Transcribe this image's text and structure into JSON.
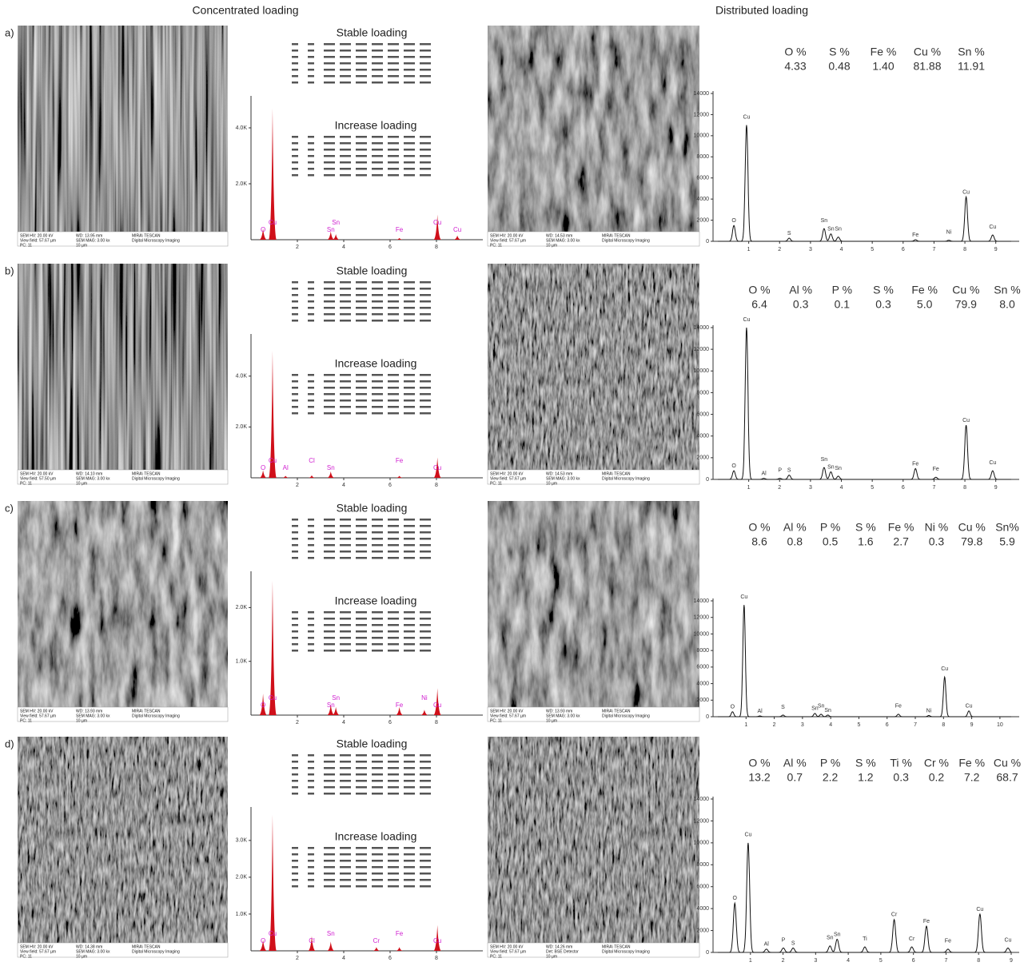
{
  "headers": {
    "concentrated": "Concentrated loading",
    "distributed": "Distributed loading"
  },
  "rows": [
    {
      "label": "a)",
      "stable_title": "Stable loading",
      "increase_title": "Increase loading",
      "sem_left": [
        "SEM HV: 20.00 kV",
        "View field: 57.67 µm",
        "PC: 11",
        "WD: 13.95 mm",
        "SEM MAG: 3.00 kx",
        "10 µm",
        "MIRA\\ TESCAN",
        "Digital Microscopy Imaging"
      ],
      "sem_right": [
        "SEM HV: 20.00 kV",
        "View field: 57.67 µm",
        "PC: 11",
        "WD: 14.53 mm",
        "SEM MAG: 3.00 kx",
        "10 µm",
        "MIRA\\ TESCAN",
        "Digital Microscopy Imaging"
      ],
      "eds": {
        "xlim": [
          0,
          10
        ],
        "ylim": [
          0,
          5000
        ],
        "xticks": [
          2,
          4,
          6,
          8
        ],
        "yticks": [
          {
            "value": 2000,
            "label": "2.0K"
          },
          {
            "value": 4000,
            "label": "4.0K"
          }
        ],
        "peaks": [
          {
            "label": "O",
            "x": 0.52,
            "y": 400
          },
          {
            "label": "Cu",
            "x": 0.93,
            "y": 4700
          },
          {
            "label": "Sn",
            "x": 3.44,
            "y": 300
          },
          {
            "label": "Sn",
            "x": 3.66,
            "y": 200
          },
          {
            "label": "Fe",
            "x": 6.4,
            "y": 60
          },
          {
            "label": "Cu",
            "x": 8.04,
            "y": 900
          },
          {
            "label": "Cu",
            "x": 8.9,
            "y": 150
          }
        ]
      },
      "composition": {
        "elements": [
          "O %",
          "S %",
          "Fe %",
          "Cu %",
          "Sn %"
        ],
        "values": [
          "4.33",
          "0.48",
          "1.40",
          "81.88",
          "11.91"
        ]
      },
      "spectrum": {
        "xlim": [
          0,
          9.5
        ],
        "ylim": [
          0,
          14000
        ],
        "xticks": [
          1,
          2,
          3,
          4,
          5,
          6,
          7,
          8,
          9
        ],
        "yticks": [
          0,
          2000,
          4000,
          6000,
          8000,
          10000,
          12000,
          14000
        ],
        "peaks": [
          {
            "label": "O",
            "x": 0.52,
            "y": 1500
          },
          {
            "label": "Cu",
            "x": 0.93,
            "y": 11000
          },
          {
            "label": "S",
            "x": 2.31,
            "y": 300
          },
          {
            "label": "Sn",
            "x": 3.44,
            "y": 1200
          },
          {
            "label": "Sn",
            "x": 3.66,
            "y": 700
          },
          {
            "label": "Sn",
            "x": 3.9,
            "y": 400
          },
          {
            "label": "Fe",
            "x": 6.4,
            "y": 150
          },
          {
            "label": "Ni",
            "x": 7.48,
            "y": 100
          },
          {
            "label": "Cu",
            "x": 8.04,
            "y": 4200
          },
          {
            "label": "Cu",
            "x": 8.9,
            "y": 600
          }
        ]
      }
    },
    {
      "label": "b)",
      "stable_title": "Stable loading",
      "increase_title": "Increase loading",
      "sem_left": [
        "SEM HV: 20.00 kV",
        "View field: 57.50 µm",
        "PC: 11",
        "WD: 14.10 mm",
        "SEM MAG: 3.00 kx",
        "10 µm",
        "MIRA\\ TESCAN",
        "Digital Microscopy Imaging"
      ],
      "sem_right": [
        "SEM HV: 20.00 kV",
        "View field: 57.67 µm",
        "PC: 11",
        "WD: 14.53 mm",
        "SEM MAG: 3.00 kx",
        "10 µm",
        "MIRA\\ TESCAN",
        "Digital Microscopy Imaging"
      ],
      "eds": {
        "xlim": [
          0,
          10
        ],
        "ylim": [
          0,
          5500
        ],
        "xticks": [
          2,
          4,
          6,
          8
        ],
        "yticks": [
          {
            "value": 2000,
            "label": "2.0K"
          },
          {
            "value": 4000,
            "label": "4.0K"
          }
        ],
        "peaks": [
          {
            "label": "O",
            "x": 0.52,
            "y": 300
          },
          {
            "label": "Cu",
            "x": 0.93,
            "y": 5000
          },
          {
            "label": "Al",
            "x": 1.49,
            "y": 80
          },
          {
            "label": "Cl",
            "x": 2.62,
            "y": 100
          },
          {
            "label": "Sn",
            "x": 3.44,
            "y": 250
          },
          {
            "label": "Fe",
            "x": 6.4,
            "y": 80
          },
          {
            "label": "Cu",
            "x": 8.04,
            "y": 800
          }
        ]
      },
      "composition": {
        "elements": [
          "O %",
          "Al %",
          "P %",
          "S %",
          "Fe %",
          "Cu %",
          "Sn %"
        ],
        "values": [
          "6.4",
          "0.3",
          "0.1",
          "0.3",
          "5.0",
          "79.9",
          "8.0"
        ]
      },
      "spectrum": {
        "xlim": [
          0,
          9.5
        ],
        "ylim": [
          0,
          14000
        ],
        "xticks": [
          1,
          2,
          3,
          4,
          5,
          6,
          7,
          8,
          9
        ],
        "yticks": [
          0,
          2000,
          4000,
          6000,
          8000,
          10000,
          12000,
          14000
        ],
        "peaks": [
          {
            "label": "O",
            "x": 0.52,
            "y": 800
          },
          {
            "label": "Cu",
            "x": 0.93,
            "y": 14000
          },
          {
            "label": "Al",
            "x": 1.49,
            "y": 100
          },
          {
            "label": "P",
            "x": 2.01,
            "y": 100
          },
          {
            "label": "S",
            "x": 2.31,
            "y": 400
          },
          {
            "label": "Sn",
            "x": 3.44,
            "y": 1100
          },
          {
            "label": "Sn",
            "x": 3.66,
            "y": 700
          },
          {
            "label": "Sn",
            "x": 3.9,
            "y": 300
          },
          {
            "label": "Fe",
            "x": 6.4,
            "y": 1000
          },
          {
            "label": "Fe",
            "x": 7.06,
            "y": 200
          },
          {
            "label": "Cu",
            "x": 8.04,
            "y": 5000
          },
          {
            "label": "Cu",
            "x": 8.9,
            "y": 800
          }
        ]
      }
    },
    {
      "label": "c)",
      "stable_title": "Stable loading",
      "increase_title": "Increase loading",
      "sem_left": [
        "SEM HV: 20.00 kV",
        "View field: 57.67 µm",
        "PC: 11",
        "WD: 13.93 mm",
        "SEM MAG: 3.00 kx",
        "10 µm",
        "MIRA\\ TESCAN",
        "Digital Microscopy Imaging"
      ],
      "sem_right": [
        "SEM HV: 20.00 kV",
        "View field: 57.67 µm",
        "PC: 11",
        "WD: 13.93 mm",
        "SEM MAG: 3.00 kx",
        "10 µm",
        "MIRA\\ TESCAN",
        "Digital Microscopy Imaging"
      ],
      "eds": {
        "xlim": [
          0,
          10
        ],
        "ylim": [
          0,
          2600
        ],
        "xticks": [
          2,
          4,
          6,
          8
        ],
        "yticks": [
          {
            "value": 1000,
            "label": "1.0K"
          },
          {
            "value": 2000,
            "label": "2.0K"
          }
        ],
        "peaks": [
          {
            "label": "O",
            "x": 0.52,
            "y": 400
          },
          {
            "label": "Cu",
            "x": 0.93,
            "y": 2500
          },
          {
            "label": "Sn",
            "x": 3.44,
            "y": 200
          },
          {
            "label": "Sn",
            "x": 3.66,
            "y": 150
          },
          {
            "label": "Fe",
            "x": 6.4,
            "y": 150
          },
          {
            "label": "Ni",
            "x": 7.48,
            "y": 100
          },
          {
            "label": "Cu",
            "x": 8.04,
            "y": 500
          }
        ]
      },
      "composition": {
        "elements": [
          "O %",
          "Al %",
          "P %",
          "S %",
          "Fe %",
          "Ni %",
          "Cu %",
          "Sn%"
        ],
        "values": [
          "8.6",
          "0.8",
          "0.5",
          "1.6",
          "2.7",
          "0.3",
          "79.8",
          "5.9"
        ]
      },
      "spectrum": {
        "xlim": [
          0,
          10.4
        ],
        "ylim": [
          0,
          14000
        ],
        "xticks": [
          1,
          2,
          3,
          4,
          5,
          6,
          7,
          8,
          9,
          10
        ],
        "yticks": [
          0,
          2000,
          4000,
          6000,
          8000,
          10000,
          12000,
          14000
        ],
        "peaks": [
          {
            "label": "O",
            "x": 0.52,
            "y": 600
          },
          {
            "label": "Cu",
            "x": 0.93,
            "y": 13500
          },
          {
            "label": "Al",
            "x": 1.49,
            "y": 100
          },
          {
            "label": "S",
            "x": 2.31,
            "y": 200
          },
          {
            "label": "Sn",
            "x": 3.44,
            "y": 400
          },
          {
            "label": "Sn",
            "x": 3.66,
            "y": 300
          },
          {
            "label": "Sn",
            "x": 3.9,
            "y": 200
          },
          {
            "label": "Fe",
            "x": 6.4,
            "y": 300
          },
          {
            "label": "Ni",
            "x": 7.48,
            "y": 150
          },
          {
            "label": "Cu",
            "x": 8.04,
            "y": 4800
          },
          {
            "label": "Cu",
            "x": 8.9,
            "y": 700
          }
        ]
      }
    },
    {
      "label": "d)",
      "stable_title": "Stable loading",
      "increase_title": "Increase loading",
      "sem_left": [
        "SEM HV: 20.00 kV",
        "View field: 57.67 µm",
        "PC: 11",
        "WD: 14.38 mm",
        "SEM MAG: 3.00 kx",
        "10 µm",
        "MIRA\\ TESCAN",
        "Digital Microscopy Imaging"
      ],
      "sem_right": [
        "SEM HV: 20.00 kV",
        "View field: 57.67 µm",
        "PC: 11",
        "WD: 14.26 mm",
        "Det: BSE Detector",
        "10 µm",
        "MIRA\\ TESCAN",
        "Digital Microscopy Imaging"
      ],
      "eds": {
        "xlim": [
          0,
          10
        ],
        "ylim": [
          0,
          3800
        ],
        "xticks": [
          2,
          4,
          6,
          8
        ],
        "yticks": [
          {
            "value": 1000,
            "label": "1.0K"
          },
          {
            "value": 2000,
            "label": "2.0K"
          },
          {
            "value": 3000,
            "label": "3.0K"
          }
        ],
        "peaks": [
          {
            "label": "O",
            "x": 0.52,
            "y": 300
          },
          {
            "label": "Cu",
            "x": 0.93,
            "y": 3700
          },
          {
            "label": "Cl",
            "x": 2.62,
            "y": 400
          },
          {
            "label": "Sn",
            "x": 3.44,
            "y": 250
          },
          {
            "label": "Cr",
            "x": 5.41,
            "y": 100
          },
          {
            "label": "Fe",
            "x": 6.4,
            "y": 100
          },
          {
            "label": "Cu",
            "x": 8.04,
            "y": 700
          }
        ]
      },
      "composition": {
        "elements": [
          "O %",
          "Al %",
          "P %",
          "S %",
          "Ti %",
          "Cr %",
          "Fe %",
          "Cu %"
        ],
        "values": [
          "13.2",
          "0.7",
          "2.2",
          "1.2",
          "0.3",
          "0.2",
          "7.2",
          "68.7"
        ]
      },
      "spectrum": {
        "xlim": [
          0,
          9
        ],
        "ylim": [
          0,
          14000
        ],
        "xticks": [
          1,
          2,
          3,
          4,
          5,
          6,
          7,
          8,
          9
        ],
        "yticks": [
          0,
          2000,
          4000,
          6000,
          8000,
          10000,
          12000,
          14000
        ],
        "peaks": [
          {
            "label": "O",
            "x": 0.52,
            "y": 4500
          },
          {
            "label": "Cu",
            "x": 0.93,
            "y": 10000
          },
          {
            "label": "Al",
            "x": 1.49,
            "y": 300
          },
          {
            "label": "P",
            "x": 2.01,
            "y": 400
          },
          {
            "label": "S",
            "x": 2.31,
            "y": 400
          },
          {
            "label": "Sn",
            "x": 3.44,
            "y": 600
          },
          {
            "label": "Sn",
            "x": 3.66,
            "y": 1200
          },
          {
            "label": "Ti",
            "x": 4.51,
            "y": 500
          },
          {
            "label": "Cr",
            "x": 5.41,
            "y": 3000
          },
          {
            "label": "Cr",
            "x": 5.95,
            "y": 500
          },
          {
            "label": "Fe",
            "x": 6.4,
            "y": 2400
          },
          {
            "label": "Fe",
            "x": 7.06,
            "y": 300
          },
          {
            "label": "Cu",
            "x": 8.04,
            "y": 3500
          },
          {
            "label": "Cu",
            "x": 8.9,
            "y": 400
          }
        ]
      }
    }
  ]
}
